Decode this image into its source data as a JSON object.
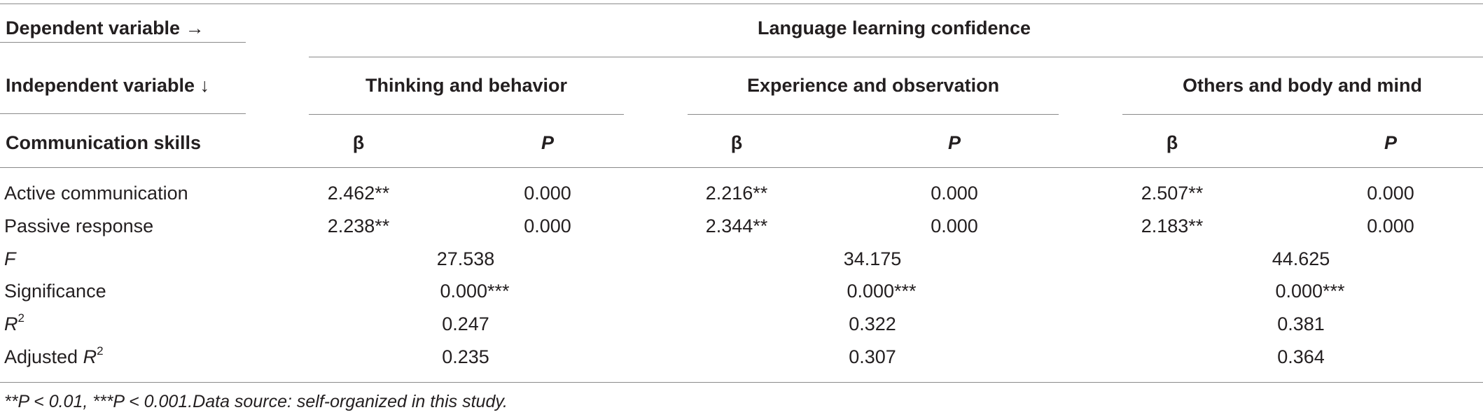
{
  "header": {
    "dependent_variable_label": "Dependent variable →",
    "dependent_variable": "Language learning confidence",
    "independent_variable_label": "Independent variable ↓",
    "groups": [
      "Thinking and behavior",
      "Experience and observation",
      "Others and body and mind"
    ],
    "row_heading": "Communication skills",
    "beta_label": "β",
    "p_label": "P"
  },
  "rows": [
    {
      "label": "Active communication",
      "values": [
        {
          "beta": "2.462**",
          "p": "0.000"
        },
        {
          "beta": "2.216**",
          "p": "0.000"
        },
        {
          "beta": "2.507**",
          "p": "0.000"
        }
      ]
    },
    {
      "label": "Passive response",
      "values": [
        {
          "beta": "2.238**",
          "p": "0.000"
        },
        {
          "beta": "2.344**",
          "p": "0.000"
        },
        {
          "beta": "2.183**",
          "p": "0.000"
        }
      ]
    }
  ],
  "stats": {
    "f": {
      "label": "F",
      "values": [
        "27.538",
        "34.175",
        "44.625"
      ]
    },
    "significance": {
      "label": "Significance",
      "values": [
        "0.000***",
        "0.000***",
        "0.000***"
      ]
    },
    "r2": {
      "label": "R",
      "sup": "2",
      "values": [
        "0.247",
        "0.322",
        "0.381"
      ]
    },
    "adjusted_r2": {
      "label_prefix": "Adjusted ",
      "label": "R",
      "sup": "2",
      "values": [
        "0.235",
        "0.307",
        "0.364"
      ]
    }
  },
  "footnote": "**P < 0.01, ***P < 0.001.Data source: self-organized in this study."
}
